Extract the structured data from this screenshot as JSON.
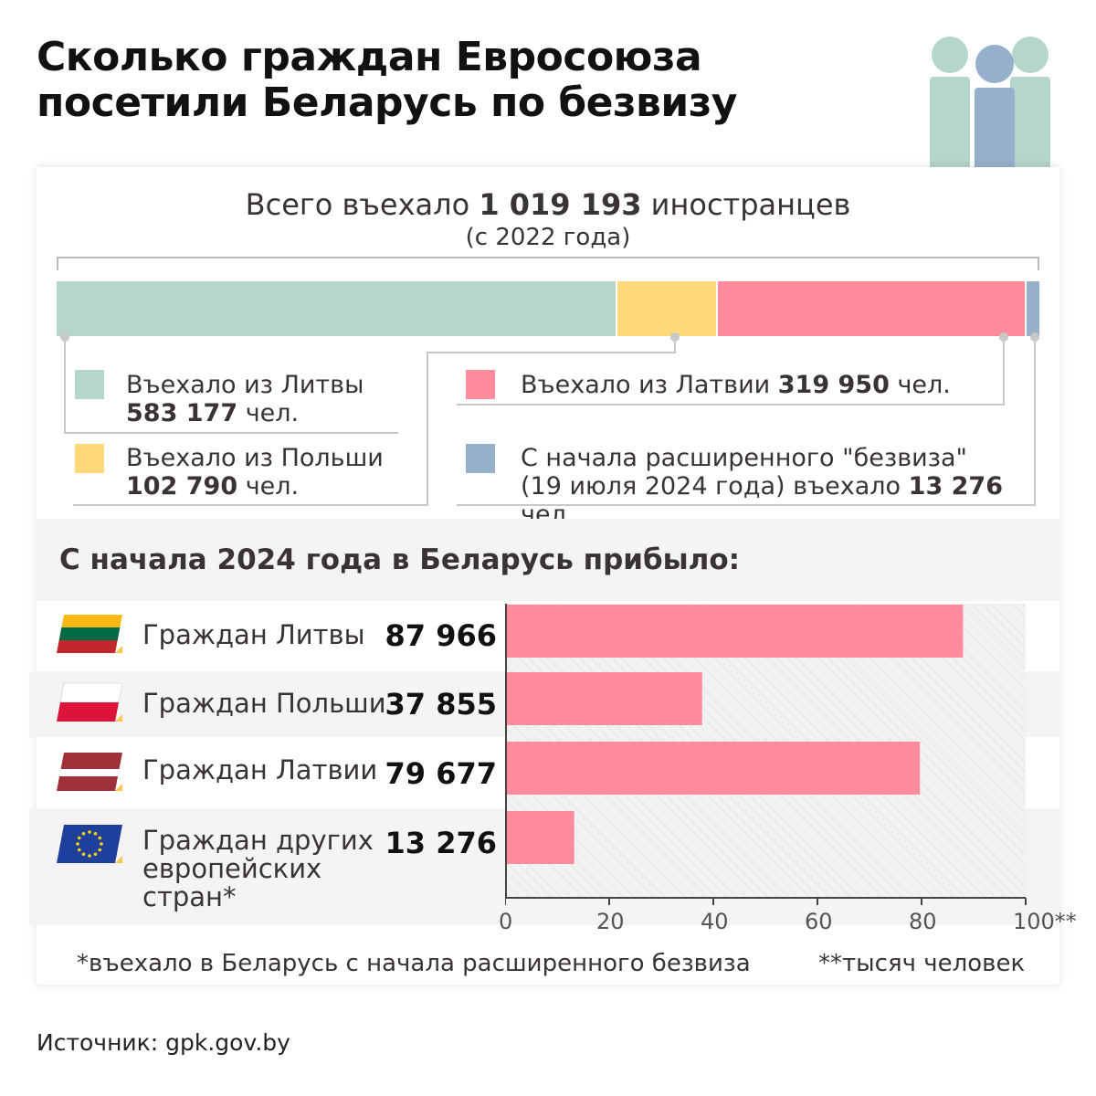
{
  "title": "Сколько граждан Евросоюза посетили Беларусь по безвизу",
  "total": {
    "prefix": "Всего въехало ",
    "value": "1 019 193",
    "suffix": " иностранцев",
    "sub": "(с 2022 года)"
  },
  "stack_segments": [
    {
      "key": "lithuania",
      "value": 583177,
      "color": "#b5d6cb"
    },
    {
      "key": "poland",
      "value": 102790,
      "color": "#ffd97a"
    },
    {
      "key": "latvia",
      "value": 319950,
      "color": "#ff8b9c"
    },
    {
      "key": "other",
      "value": 13276,
      "color": "#96b0cc"
    }
  ],
  "legend": {
    "lithuania": {
      "text": "Въехало из Литвы",
      "value": "583 177",
      "unit": " чел."
    },
    "poland": {
      "text": "Въехало из Польши",
      "value": "102 790",
      "unit": " чел."
    },
    "latvia": {
      "text": "Въехало из Латвии ",
      "value": "319 950",
      "unit": " чел."
    },
    "other": {
      "line1": "С начала расширенного \"безвиза\"",
      "line2_prefix": "(19 июля 2024 года) въехало ",
      "value": "13 276",
      "unit": " чел."
    }
  },
  "section_title": "С начала 2024 года в Беларусь прибыло:",
  "rows": [
    {
      "label": "Граждан Литвы",
      "value_text": "87 966"
    },
    {
      "label": "Граждан Польши",
      "value_text": "37 855"
    },
    {
      "label": "Граждан Латвии",
      "value_text": "79 677"
    },
    {
      "label_lines": [
        "Граждан других",
        "европейских",
        "стран*"
      ],
      "value_text": "13 276"
    }
  ],
  "chart_data": {
    "type": "bar",
    "orientation": "horizontal",
    "categories": [
      "Граждан Литвы",
      "Граждан Польши",
      "Граждан Латвии",
      "Граждан других европейских стран*"
    ],
    "values": [
      87.966,
      37.855,
      79.677,
      13.276
    ],
    "xlim": [
      0,
      100
    ],
    "ticks": [
      "0",
      "20",
      "40",
      "60",
      "80",
      "100**"
    ],
    "bar_color": "#ff8b9c"
  },
  "footnotes": {
    "left": "*въехало в Беларусь с начала расширенного безвиза",
    "right": "**тысяч человек"
  },
  "source": "Источник: gpk.gov.by"
}
